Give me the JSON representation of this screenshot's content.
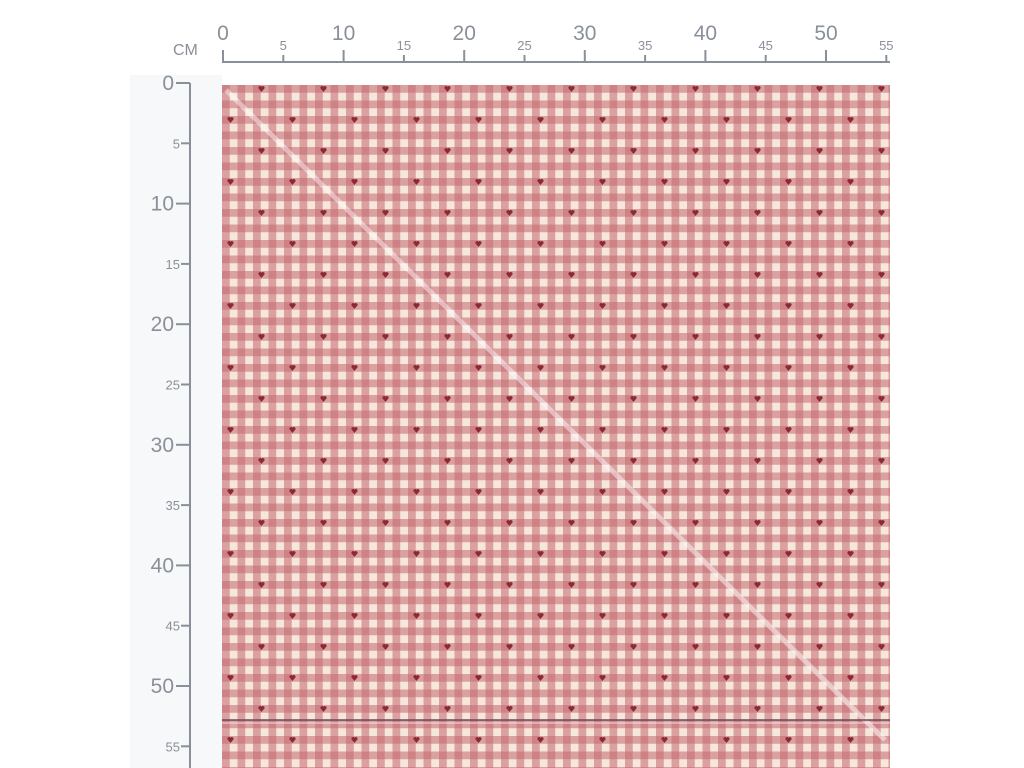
{
  "ruler": {
    "unit": "CM",
    "top_labels": [
      0,
      5,
      10,
      15,
      20,
      25,
      30,
      35,
      40,
      45,
      50,
      55
    ],
    "left_labels": [
      0,
      5,
      10,
      15,
      20,
      25,
      30,
      35,
      40,
      45,
      50,
      55
    ]
  }
}
